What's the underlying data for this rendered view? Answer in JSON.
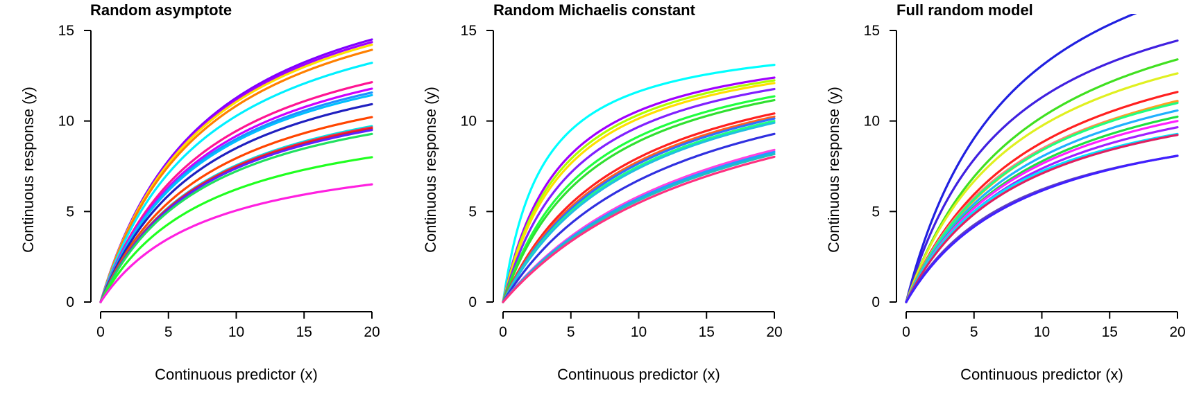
{
  "chart_data": [
    {
      "type": "line",
      "title": "Random asymptote",
      "xlabel": "Continuous predictor (x)",
      "ylabel": "Continuous response (y)",
      "xlim": [
        0,
        20
      ],
      "ylim": [
        0,
        15
      ],
      "xticks": [
        0,
        5,
        10,
        15,
        20
      ],
      "yticks": [
        0,
        5,
        10,
        15
      ],
      "grid": false,
      "model": "y = Vmax * x / (K + x)",
      "series": [
        {
          "Vmax": 20.3,
          "K": 8.0,
          "color": "#8000FF"
        },
        {
          "Vmax": 20.1,
          "K": 8.0,
          "color": "#A000FF"
        },
        {
          "Vmax": 19.9,
          "K": 8.0,
          "color": "#FFE000"
        },
        {
          "Vmax": 19.5,
          "K": 8.0,
          "color": "#FF8000"
        },
        {
          "Vmax": 18.5,
          "K": 8.0,
          "color": "#00F0FF"
        },
        {
          "Vmax": 17.0,
          "K": 8.0,
          "color": "#FF1493"
        },
        {
          "Vmax": 16.5,
          "K": 8.0,
          "color": "#CC00FF"
        },
        {
          "Vmax": 16.2,
          "K": 8.0,
          "color": "#1E90FF"
        },
        {
          "Vmax": 16.0,
          "K": 8.0,
          "color": "#00BFFF"
        },
        {
          "Vmax": 15.3,
          "K": 8.0,
          "color": "#2020C0"
        },
        {
          "Vmax": 14.3,
          "K": 8.0,
          "color": "#FF4500"
        },
        {
          "Vmax": 13.6,
          "K": 8.0,
          "color": "#00E5E5"
        },
        {
          "Vmax": 13.5,
          "K": 8.0,
          "color": "#FF2040"
        },
        {
          "Vmax": 13.4,
          "K": 8.0,
          "color": "#E02020"
        },
        {
          "Vmax": 13.3,
          "K": 8.0,
          "color": "#6020FF"
        },
        {
          "Vmax": 13.0,
          "K": 8.0,
          "color": "#20E060"
        },
        {
          "Vmax": 11.2,
          "K": 8.0,
          "color": "#20FF20"
        },
        {
          "Vmax": 9.1,
          "K": 8.0,
          "color": "#FF20E0"
        }
      ]
    },
    {
      "type": "line",
      "title": "Random Michaelis constant",
      "xlabel": "Continuous predictor (x)",
      "ylabel": "Continuous response (y)",
      "xlim": [
        0,
        20
      ],
      "ylim": [
        0,
        15
      ],
      "xticks": [
        0,
        5,
        10,
        15,
        20
      ],
      "yticks": [
        0,
        5,
        10,
        15
      ],
      "grid": false,
      "model": "y = Vmax * x / (K + x)",
      "series": [
        {
          "Vmax": 15.0,
          "K": 2.9,
          "color": "#00FFFF"
        },
        {
          "Vmax": 15.0,
          "K": 4.2,
          "color": "#A000FF"
        },
        {
          "Vmax": 15.0,
          "K": 4.5,
          "color": "#B0FF00"
        },
        {
          "Vmax": 15.0,
          "K": 4.8,
          "color": "#FFE000"
        },
        {
          "Vmax": 15.0,
          "K": 5.5,
          "color": "#8020FF"
        },
        {
          "Vmax": 15.0,
          "K": 6.4,
          "color": "#20FF40"
        },
        {
          "Vmax": 15.0,
          "K": 6.9,
          "color": "#30E030"
        },
        {
          "Vmax": 15.0,
          "K": 8.8,
          "color": "#FF2020"
        },
        {
          "Vmax": 15.0,
          "K": 9.3,
          "color": "#FF6020"
        },
        {
          "Vmax": 15.0,
          "K": 9.6,
          "color": "#3070FF"
        },
        {
          "Vmax": 15.0,
          "K": 10.0,
          "color": "#20FF80"
        },
        {
          "Vmax": 15.0,
          "K": 10.3,
          "color": "#20C0E0"
        },
        {
          "Vmax": 15.0,
          "K": 12.3,
          "color": "#3030E0"
        },
        {
          "Vmax": 15.0,
          "K": 15.7,
          "color": "#FF40E0"
        },
        {
          "Vmax": 15.0,
          "K": 16.2,
          "color": "#20A0FF"
        },
        {
          "Vmax": 15.0,
          "K": 16.7,
          "color": "#20C0C0"
        },
        {
          "Vmax": 15.0,
          "K": 17.4,
          "color": "#FF3080"
        }
      ]
    },
    {
      "type": "line",
      "title": "Full random model",
      "xlabel": "Continuous predictor (x)",
      "ylabel": "Continuous response (y)",
      "xlim": [
        0,
        20
      ],
      "ylim": [
        0,
        15
      ],
      "xticks": [
        0,
        5,
        10,
        15,
        20
      ],
      "yticks": [
        0,
        5,
        10,
        15
      ],
      "grid": false,
      "model": "y = Vmax * x / (K + x)",
      "series": [
        {
          "Vmax": 23.5,
          "K": 8.0,
          "color": "#2020E0"
        },
        {
          "Vmax": 20.0,
          "K": 7.7,
          "color": "#4020E0"
        },
        {
          "Vmax": 19.5,
          "K": 9.1,
          "color": "#40E020"
        },
        {
          "Vmax": 18.0,
          "K": 8.5,
          "color": "#E0F020"
        },
        {
          "Vmax": 17.0,
          "K": 9.3,
          "color": "#FF2020"
        },
        {
          "Vmax": 16.0,
          "K": 8.9,
          "color": "#FF8080"
        },
        {
          "Vmax": 16.5,
          "K": 9.7,
          "color": "#FFA020"
        },
        {
          "Vmax": 16.0,
          "K": 9.1,
          "color": "#20FF80"
        },
        {
          "Vmax": 15.5,
          "K": 9.3,
          "color": "#20B0FF"
        },
        {
          "Vmax": 15.0,
          "K": 9.3,
          "color": "#20E040"
        },
        {
          "Vmax": 14.5,
          "K": 9.0,
          "color": "#FF20FF"
        },
        {
          "Vmax": 14.0,
          "K": 9.0,
          "color": "#A020FF"
        },
        {
          "Vmax": 13.0,
          "K": 8.0,
          "color": "#00E5FF"
        },
        {
          "Vmax": 13.2,
          "K": 8.6,
          "color": "#E02060"
        },
        {
          "Vmax": 11.5,
          "K": 8.5,
          "color": "#6040C0"
        },
        {
          "Vmax": 11.8,
          "K": 9.2,
          "color": "#4020FF"
        }
      ]
    }
  ]
}
